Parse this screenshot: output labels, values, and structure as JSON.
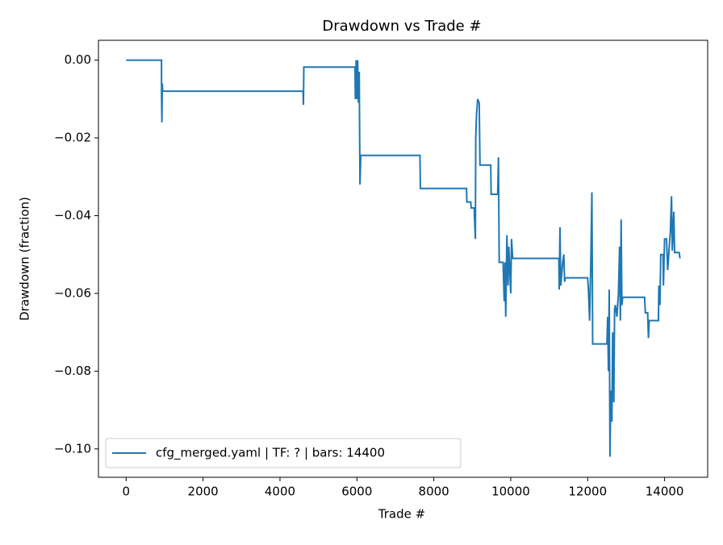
{
  "chart_data": {
    "type": "line",
    "title": "Drawdown vs Trade #",
    "x_label": "Trade #",
    "y_label": "Drawdown (fraction)",
    "xlim": [
      -720,
      15120
    ],
    "ylim": [
      -0.1073,
      0.0051
    ],
    "xticks": [
      0,
      2000,
      4000,
      6000,
      8000,
      10000,
      12000,
      14000
    ],
    "yticks": [
      {
        "value": 0,
        "label": "0.00"
      },
      {
        "value": -0.02,
        "label": "−0.02"
      },
      {
        "value": -0.04,
        "label": "−0.04"
      },
      {
        "value": -0.06,
        "label": "−0.06"
      },
      {
        "value": -0.08,
        "label": "−0.08"
      },
      {
        "value": -0.1,
        "label": "−0.10"
      }
    ],
    "grid": false,
    "legend": "lower left",
    "series": [
      {
        "name": "cfg_merged.yaml | TF: ? | bars: 14400",
        "color": "#1f77b4",
        "x": [
          0,
          920,
          920,
          930,
          940,
          950,
          4600,
          4610,
          4620,
          5950,
          5960,
          5980,
          6000,
          6020,
          6040,
          6060,
          6080,
          6100,
          7640,
          7650,
          8850,
          8860,
          8960,
          8970,
          9050,
          9060,
          9080,
          9090,
          9110,
          9140,
          9180,
          9200,
          9480,
          9490,
          9660,
          9680,
          9700,
          9800,
          9830,
          9850,
          9870,
          9900,
          9930,
          9950,
          10000,
          10020,
          10050,
          11250,
          11260,
          11280,
          11300,
          11350,
          11380,
          11400,
          11420,
          12000,
          12020,
          12050,
          12080,
          12110,
          12130,
          12500,
          12520,
          12540,
          12560,
          12580,
          12600,
          12630,
          12650,
          12680,
          12700,
          12720,
          12760,
          12800,
          12830,
          12850,
          12870,
          12890,
          12910,
          13480,
          13500,
          13560,
          13580,
          13600,
          13840,
          13850,
          13880,
          13900,
          13960,
          13970,
          14000,
          14050,
          14080,
          14150,
          14180,
          14200,
          14240,
          14260,
          14380,
          14400
        ],
        "values": [
          0,
          0,
          -0.008,
          -0.016,
          -0.006,
          -0.008,
          -0.008,
          -0.0115,
          -0.0018,
          -0.0018,
          -0.01,
          0,
          -0.01,
          0,
          -0.011,
          -0.003,
          -0.032,
          -0.0245,
          -0.0245,
          -0.033,
          -0.033,
          -0.0365,
          -0.0365,
          -0.038,
          -0.038,
          -0.041,
          -0.046,
          -0.02,
          -0.014,
          -0.01,
          -0.011,
          -0.027,
          -0.027,
          -0.0345,
          -0.0345,
          -0.025,
          -0.052,
          -0.052,
          -0.062,
          -0.052,
          -0.066,
          -0.045,
          -0.058,
          -0.048,
          -0.06,
          -0.046,
          -0.051,
          -0.051,
          -0.059,
          -0.043,
          -0.058,
          -0.052,
          -0.05,
          -0.057,
          -0.056,
          -0.056,
          -0.059,
          -0.067,
          -0.053,
          -0.034,
          -0.073,
          -0.073,
          -0.066,
          -0.08,
          -0.059,
          -0.102,
          -0.085,
          -0.093,
          -0.07,
          -0.088,
          -0.064,
          -0.063,
          -0.066,
          -0.06,
          -0.048,
          -0.067,
          -0.041,
          -0.063,
          -0.061,
          -0.061,
          -0.065,
          -0.065,
          -0.0715,
          -0.067,
          -0.067,
          -0.058,
          -0.063,
          -0.05,
          -0.05,
          -0.058,
          -0.046,
          -0.046,
          -0.054,
          -0.044,
          -0.035,
          -0.049,
          -0.039,
          -0.0495,
          -0.0495,
          -0.051
        ]
      }
    ]
  }
}
